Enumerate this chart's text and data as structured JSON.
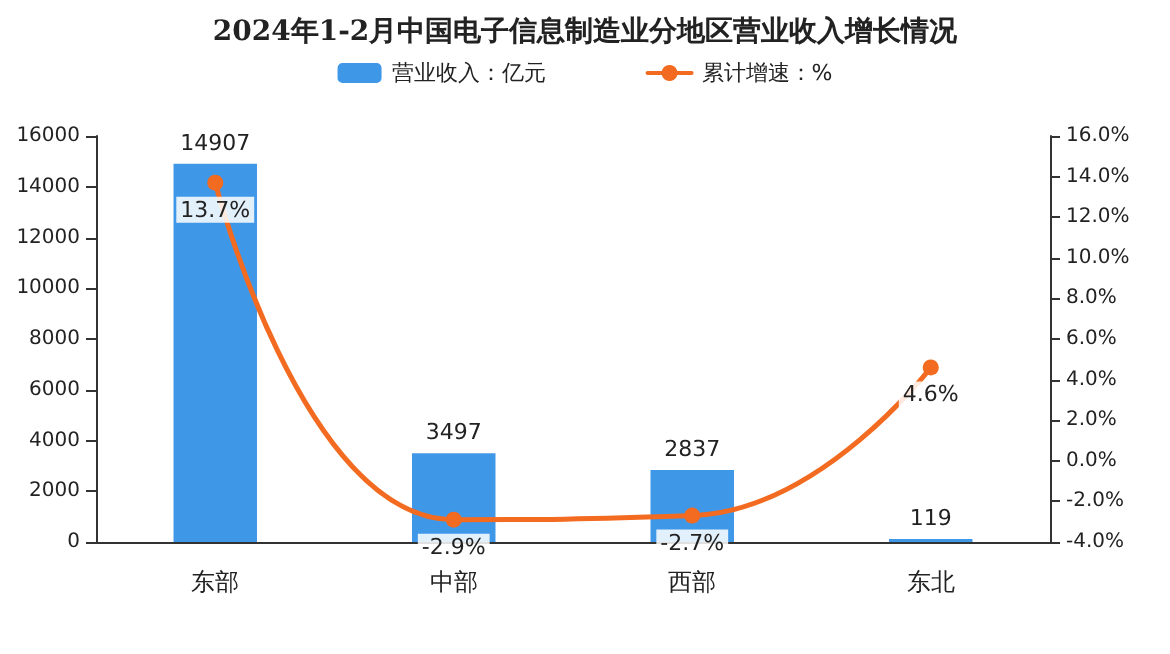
{
  "chart_data": {
    "type": "bar",
    "title": "2024年1-2月中国电子信息制造业分地区营业收入增长情况",
    "categories": [
      "东部",
      "中部",
      "西部",
      "东北"
    ],
    "series": [
      {
        "name": "营业收入：亿元",
        "color": "#3f97e8",
        "values": [
          14907,
          3497,
          2837,
          119
        ],
        "value_labels": [
          "14907",
          "3497",
          "2837",
          "119"
        ]
      },
      {
        "name": "累计增速：%",
        "type": "line",
        "axis": "y2",
        "color": "#f26b21",
        "values": [
          13.7,
          -2.9,
          -2.7,
          4.6
        ],
        "value_labels": [
          "13.7%",
          "-2.9%",
          "-2.7%",
          "4.6%"
        ]
      }
    ],
    "ylim": [
      0,
      16000
    ],
    "yticks": [
      0,
      2000,
      4000,
      6000,
      8000,
      10000,
      12000,
      14000,
      16000
    ],
    "y2lim": [
      -4,
      16
    ],
    "y2ticks": [
      {
        "value": -4,
        "label": "-4.0%"
      },
      {
        "value": -2,
        "label": "-2.0%"
      },
      {
        "value": 0,
        "label": "0.0%"
      },
      {
        "value": 2,
        "label": "2.0%"
      },
      {
        "value": 4,
        "label": "4.0%"
      },
      {
        "value": 6,
        "label": "6.0%"
      },
      {
        "value": 8,
        "label": "8.0%"
      },
      {
        "value": 10,
        "label": "10.0%"
      },
      {
        "value": 12,
        "label": "12.0%"
      },
      {
        "value": 14,
        "label": "14.0%"
      },
      {
        "value": 16,
        "label": "16.0%"
      }
    ],
    "legend": "top",
    "grid": false,
    "marker": "circle",
    "line_style": "solid"
  }
}
